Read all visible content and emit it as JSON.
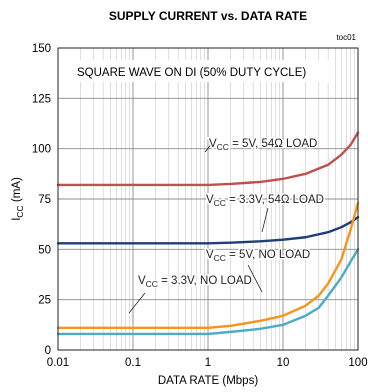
{
  "chart_data": {
    "type": "line",
    "title": "SUPPLY CURRENT vs. DATA RATE",
    "figure_id": "toc01",
    "note": "SQUARE WAVE ON DI (50% DUTY CYCLE)",
    "xlabel_pre": "DATA RATE (Mbps)",
    "ylabel_main": "I",
    "ylabel_sub": "CC",
    "ylabel_unit": " (mA)",
    "x_scale": "log",
    "xlim": [
      0.01,
      100
    ],
    "ylim": [
      0,
      150
    ],
    "x_ticks": [
      0.01,
      0.1,
      1,
      10,
      100
    ],
    "x_tick_labels": [
      "0.01",
      "0.1",
      "1",
      "10",
      "100"
    ],
    "y_ticks": [
      0,
      25,
      50,
      75,
      100,
      125,
      150
    ],
    "y_tick_labels": [
      "0",
      "25",
      "50",
      "75",
      "100",
      "125",
      "150"
    ],
    "grid": true,
    "series": [
      {
        "label_main": "V",
        "label_sub": "CC",
        "label_rest": " = 5V, 54Ω LOAD",
        "color": "#c0504d",
        "x": [
          0.01,
          0.1,
          1,
          2,
          5,
          10,
          20,
          40,
          60,
          80,
          100
        ],
        "y": [
          82,
          82,
          82,
          82.5,
          83.5,
          85,
          87.5,
          92,
          97,
          102,
          108
        ]
      },
      {
        "label_main": "V",
        "label_sub": "CC",
        "label_rest": " = 3.3V, 54Ω LOAD",
        "color": "#1f3d7a",
        "x": [
          0.01,
          0.1,
          1,
          2,
          5,
          10,
          20,
          40,
          60,
          80,
          100
        ],
        "y": [
          53,
          53,
          53,
          53.3,
          54,
          54.8,
          56,
          58.5,
          61,
          63.5,
          66
        ]
      },
      {
        "label_main": "V",
        "label_sub": "CC",
        "label_rest": " = 5V, NO LOAD",
        "color": "#f7941d",
        "x": [
          0.01,
          0.1,
          1,
          2,
          5,
          10,
          20,
          30,
          40,
          60,
          80,
          100
        ],
        "y": [
          11,
          11,
          11,
          12,
          14.5,
          17,
          22,
          27,
          33,
          45,
          60,
          73
        ]
      },
      {
        "label_main": "V",
        "label_sub": "CC",
        "label_rest": " = 3.3V, NO LOAD",
        "color": "#4bacc6",
        "x": [
          0.01,
          0.1,
          1,
          2,
          5,
          10,
          20,
          30,
          40,
          60,
          80,
          100
        ],
        "y": [
          8,
          8,
          8,
          9,
          10.5,
          12.5,
          17,
          21,
          27,
          36,
          44,
          50
        ]
      }
    ]
  }
}
